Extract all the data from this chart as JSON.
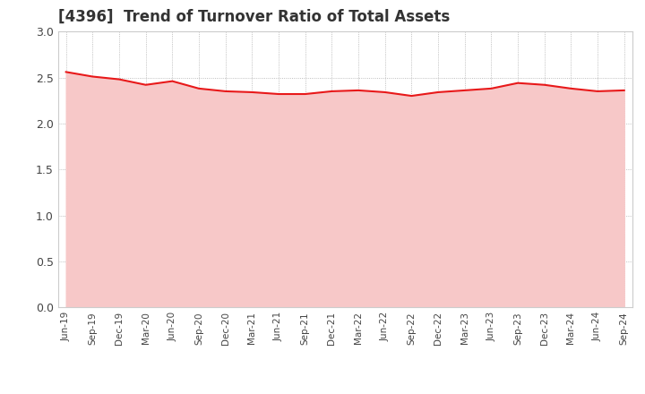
{
  "title": "[4396]  Trend of Turnover Ratio of Total Assets",
  "title_fontsize": 12,
  "title_color": "#333333",
  "x_labels": [
    "Jun-19",
    "Sep-19",
    "Dec-19",
    "Mar-20",
    "Jun-20",
    "Sep-20",
    "Dec-20",
    "Mar-21",
    "Jun-21",
    "Sep-21",
    "Dec-21",
    "Mar-22",
    "Jun-22",
    "Sep-22",
    "Dec-22",
    "Mar-23",
    "Jun-23",
    "Sep-23",
    "Dec-23",
    "Mar-24",
    "Jun-24",
    "Sep-24"
  ],
  "values": [
    2.56,
    2.51,
    2.48,
    2.42,
    2.46,
    2.38,
    2.35,
    2.34,
    2.32,
    2.32,
    2.35,
    2.36,
    2.34,
    2.3,
    2.34,
    2.36,
    2.38,
    2.44,
    2.42,
    2.38,
    2.35,
    2.36
  ],
  "line_color": "#e8191a",
  "fill_color": "#f7c8c8",
  "ylim": [
    0.0,
    3.0
  ],
  "yticks": [
    0.0,
    0.5,
    1.0,
    1.5,
    2.0,
    2.5,
    3.0
  ],
  "grid_color": "#aaaaaa",
  "background_color": "#ffffff",
  "plot_bg_color": "#ffffff"
}
